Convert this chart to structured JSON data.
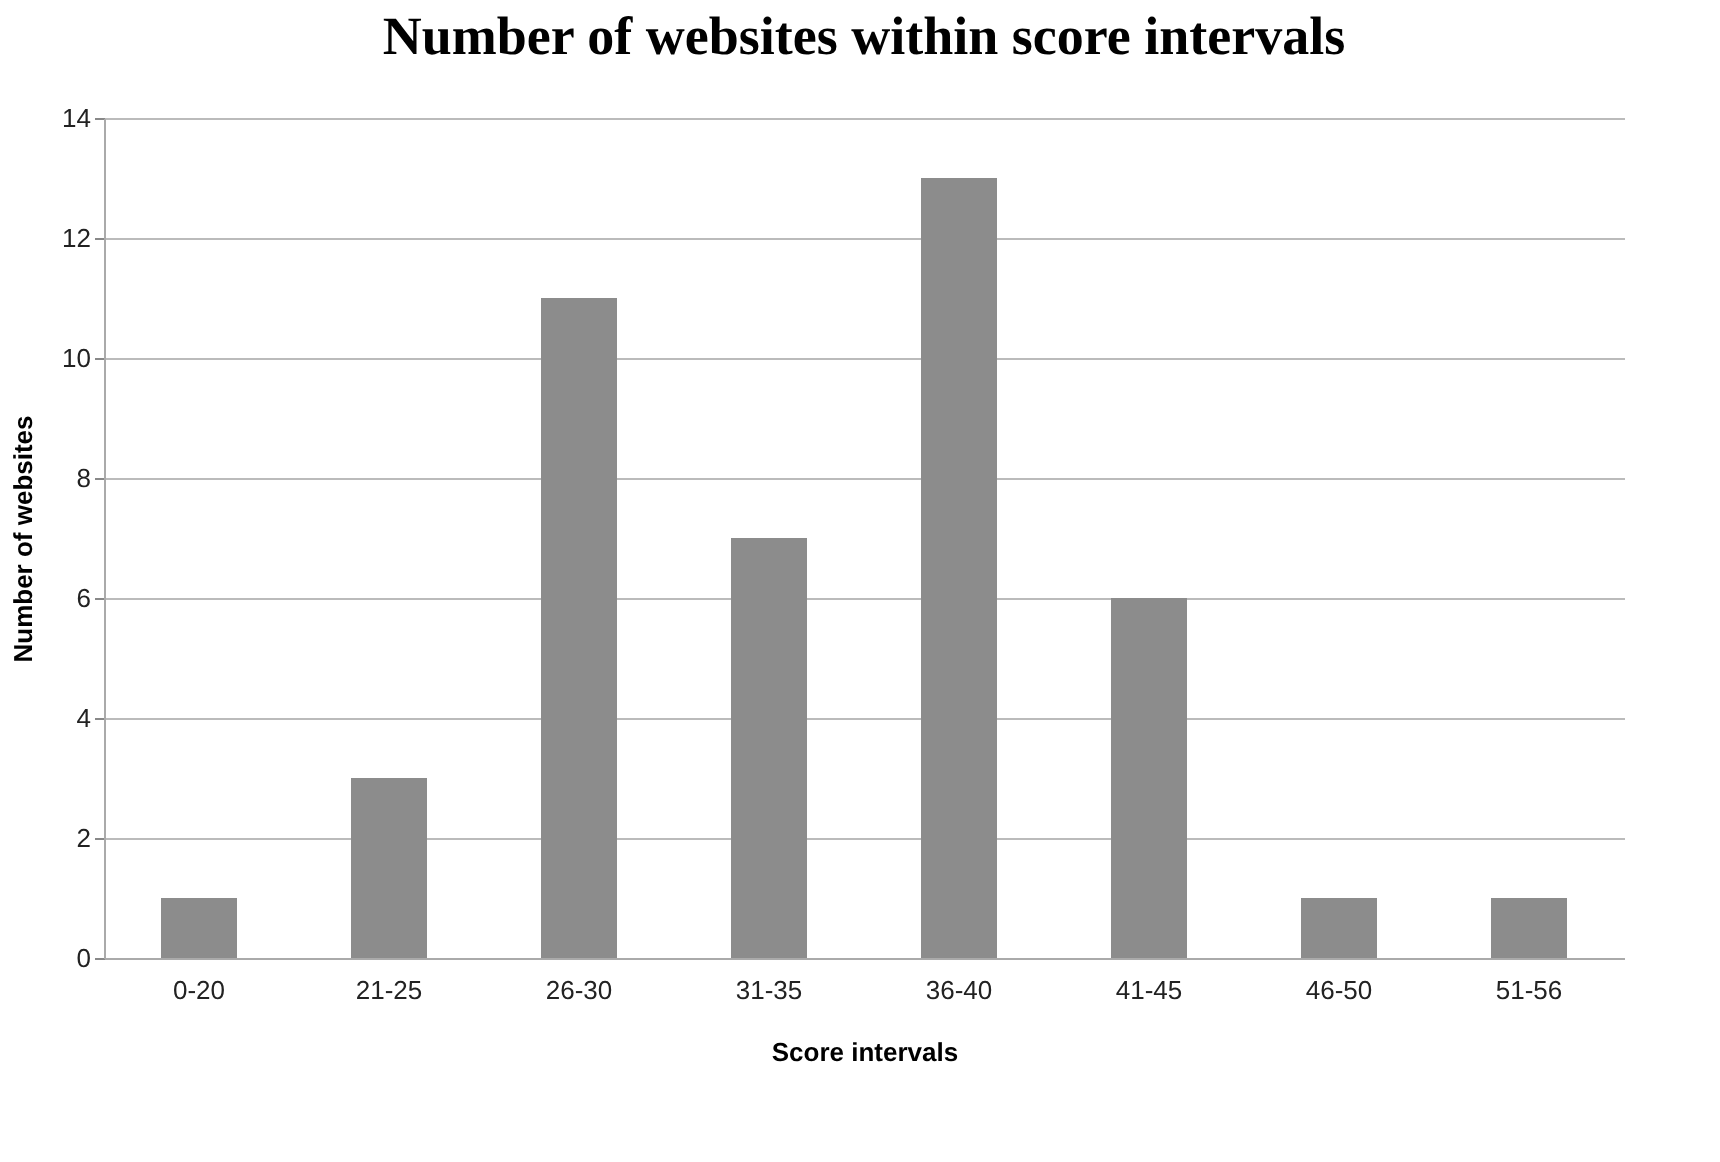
{
  "chart_data": {
    "type": "bar",
    "title": "Number of websites within score intervals",
    "xlabel": "Score intervals",
    "ylabel": "Number of websites",
    "categories": [
      "0-20",
      "21-25",
      "26-30",
      "31-35",
      "36-40",
      "41-45",
      "46-50",
      "51-56"
    ],
    "values": [
      1,
      3,
      11,
      7,
      13,
      6,
      1,
      1
    ],
    "color": "#8c8c8c",
    "ylim": [
      0,
      14
    ],
    "yticks": [
      0,
      2,
      4,
      6,
      8,
      10,
      12,
      14
    ],
    "grid": "y"
  }
}
